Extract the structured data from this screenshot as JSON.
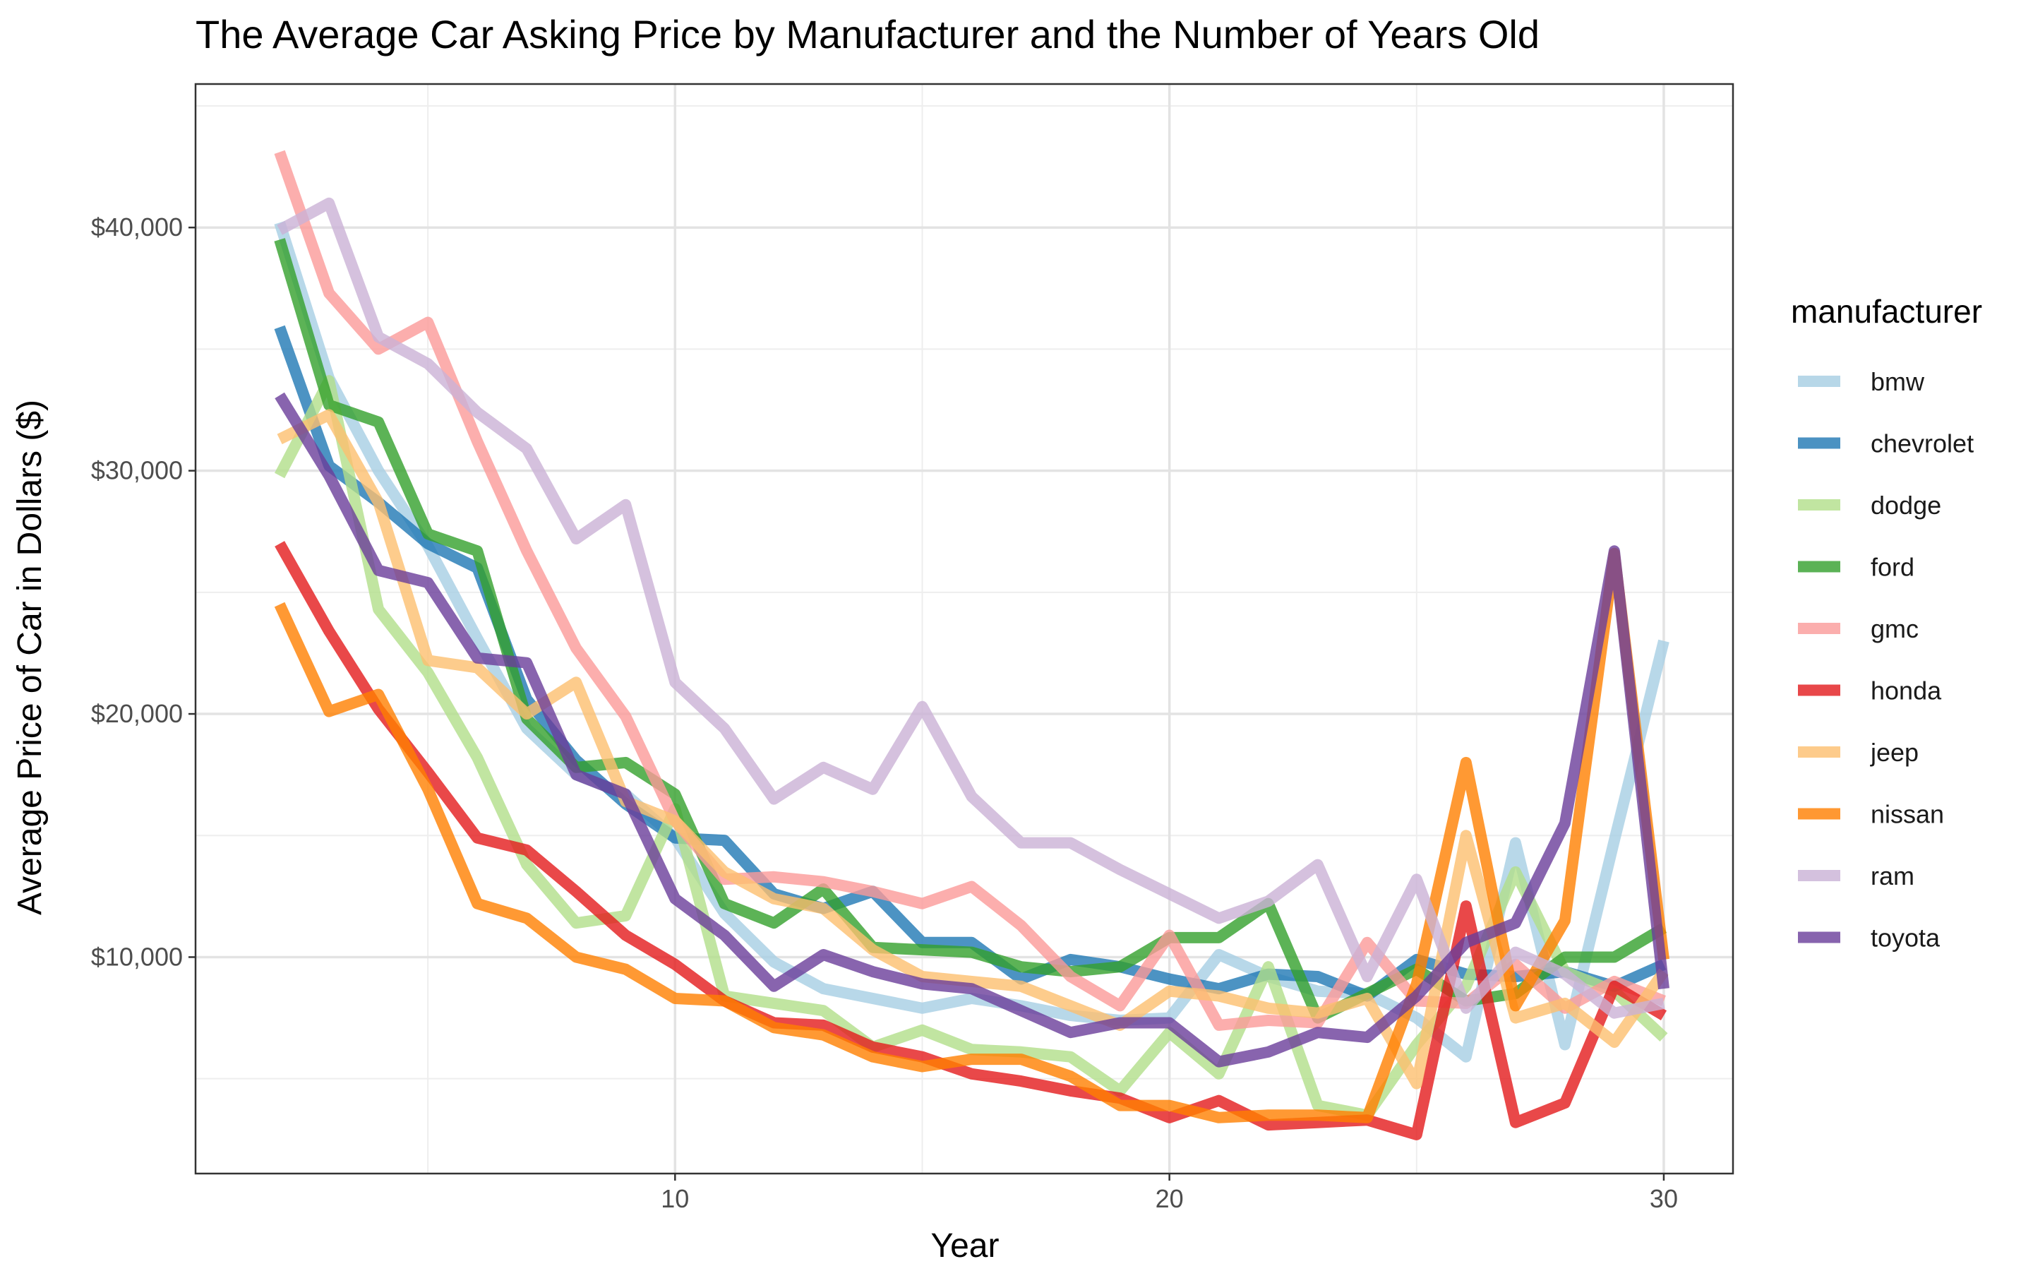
{
  "chart_data": {
    "type": "line",
    "title": "The Average Car Asking Price by Manufacturer and the Number of Years Old",
    "xlabel": "Year",
    "ylabel": "Average Price of Car in Dollars ($)",
    "xlim": [
      0.3,
      31.4
    ],
    "ylim": [
      1100,
      45900
    ],
    "x_ticks": [
      10,
      20,
      30
    ],
    "y_ticks": [
      10000,
      20000,
      30000,
      40000
    ],
    "y_tick_labels": [
      "$10,000",
      "$20,000",
      "$30,000",
      "$40,000"
    ],
    "grid": true,
    "legend": {
      "title": "manufacturer",
      "position": "right"
    },
    "x": [
      2,
      3,
      4,
      5,
      6,
      7,
      8,
      9,
      10,
      11,
      12,
      13,
      14,
      15,
      16,
      17,
      18,
      19,
      20,
      21,
      22,
      23,
      24,
      25,
      26,
      27,
      28,
      29,
      30
    ],
    "series": [
      {
        "name": "bmw",
        "color": "#a6cee3",
        "values": [
          40200,
          33800,
          30000,
          26900,
          23100,
          19400,
          17500,
          16700,
          14900,
          11800,
          9800,
          8700,
          8300,
          7900,
          8300,
          8000,
          7600,
          7400,
          7500,
          10100,
          9200,
          8600,
          8500,
          7500,
          5900,
          14700,
          6400,
          14800,
          23000
        ]
      },
      {
        "name": "chevrolet",
        "color": "#1f78b4",
        "values": [
          35900,
          30200,
          28700,
          27000,
          26000,
          20600,
          18100,
          16300,
          14900,
          14800,
          12600,
          12000,
          12700,
          10600,
          10600,
          9100,
          9900,
          9600,
          9100,
          8700,
          9300,
          9200,
          8400,
          9900,
          9300,
          9200,
          9400,
          8800,
          9700
        ]
      },
      {
        "name": "dodge",
        "color": "#b2df8a",
        "values": [
          29800,
          33700,
          24300,
          21700,
          18200,
          13800,
          11400,
          11700,
          16100,
          8400,
          8100,
          7800,
          6300,
          7000,
          6200,
          6100,
          5900,
          4500,
          6900,
          5200,
          9600,
          3900,
          3500,
          6400,
          8800,
          13500,
          9400,
          8600,
          6700
        ]
      },
      {
        "name": "ford",
        "color": "#33a02c",
        "values": [
          39500,
          32700,
          32000,
          27400,
          26700,
          19800,
          17800,
          18000,
          16700,
          12200,
          11400,
          12800,
          10400,
          10300,
          10200,
          9600,
          9400,
          9600,
          10800,
          10800,
          12200,
          7500,
          8500,
          9500,
          8200,
          8500,
          10000,
          10000,
          11200
        ]
      },
      {
        "name": "gmc",
        "color": "#fb9a99",
        "values": [
          43100,
          37300,
          35000,
          36100,
          31200,
          26700,
          22700,
          19900,
          15600,
          13200,
          13300,
          13100,
          12700,
          12200,
          12900,
          11300,
          9200,
          8000,
          10900,
          7200,
          7400,
          7300,
          10600,
          8200,
          8100,
          9700,
          7900,
          9000,
          8200
        ]
      },
      {
        "name": "honda",
        "color": "#e31a1c",
        "values": [
          27000,
          23400,
          20200,
          17600,
          14900,
          14400,
          12700,
          10900,
          9700,
          8200,
          7300,
          7200,
          6300,
          5900,
          5200,
          4900,
          4500,
          4200,
          3400,
          4100,
          3100,
          3200,
          3300,
          2700,
          12100,
          3200,
          4000,
          8800,
          7600
        ]
      },
      {
        "name": "jeep",
        "color": "#fdbf6f",
        "values": [
          31300,
          32300,
          28700,
          22200,
          21900,
          20000,
          21300,
          16400,
          15600,
          13500,
          12400,
          12000,
          10300,
          9200,
          9000,
          8800,
          8000,
          7200,
          8600,
          8400,
          7900,
          7700,
          8300,
          4800,
          15000,
          7500,
          8100,
          6500,
          9400
        ]
      },
      {
        "name": "nissan",
        "color": "#ff7f00",
        "values": [
          24500,
          20100,
          20800,
          16900,
          12200,
          11600,
          10000,
          9500,
          8300,
          8200,
          7100,
          6800,
          5900,
          5500,
          5800,
          5800,
          5100,
          3900,
          3900,
          3400,
          3500,
          3500,
          3400,
          8900,
          18000,
          8000,
          11500,
          26600,
          9900
        ]
      },
      {
        "name": "ram",
        "color": "#cab2d6",
        "values": [
          39900,
          41000,
          35500,
          34400,
          32400,
          30900,
          27200,
          28600,
          21300,
          19400,
          16500,
          17800,
          16900,
          20300,
          16600,
          14700,
          14700,
          13600,
          12600,
          11600,
          12300,
          13800,
          9200,
          13200,
          7900,
          10200,
          9300,
          7700,
          8100
        ]
      },
      {
        "name": "toyota",
        "color": "#6a3d9a",
        "values": [
          33100,
          29800,
          25900,
          25400,
          22300,
          22100,
          17500,
          16700,
          12400,
          10900,
          8800,
          10100,
          9400,
          8900,
          8700,
          7800,
          6900,
          7300,
          7300,
          5700,
          6100,
          6900,
          6700,
          8400,
          10600,
          11400,
          15500,
          26700,
          8700
        ]
      }
    ]
  }
}
